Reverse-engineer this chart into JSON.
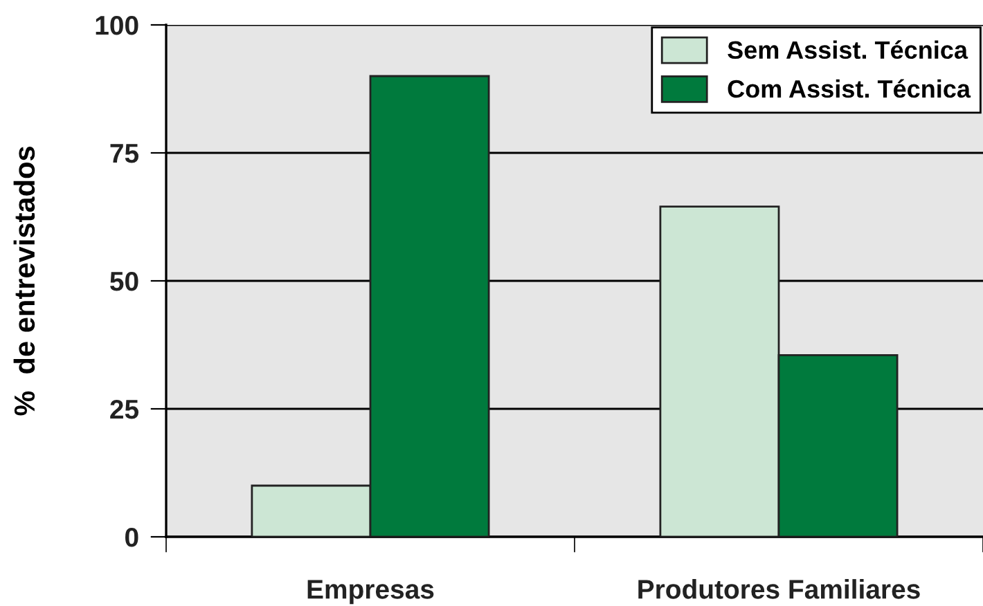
{
  "chart_data": {
    "type": "bar",
    "ylabel": "%  de entrevistados",
    "categories": [
      "Empresas",
      "Produtores Familiares"
    ],
    "series": [
      {
        "name": "Sem Assist. Técnica",
        "color": "#cce6d4",
        "values": [
          10,
          64.5
        ]
      },
      {
        "name": "Com Assist. Técnica",
        "color": "#007a3d",
        "values": [
          90,
          35.5
        ]
      }
    ],
    "ylim": [
      0,
      100
    ],
    "yticks": [
      0,
      25,
      50,
      75,
      100
    ],
    "grid": "y",
    "legend": "top right"
  }
}
